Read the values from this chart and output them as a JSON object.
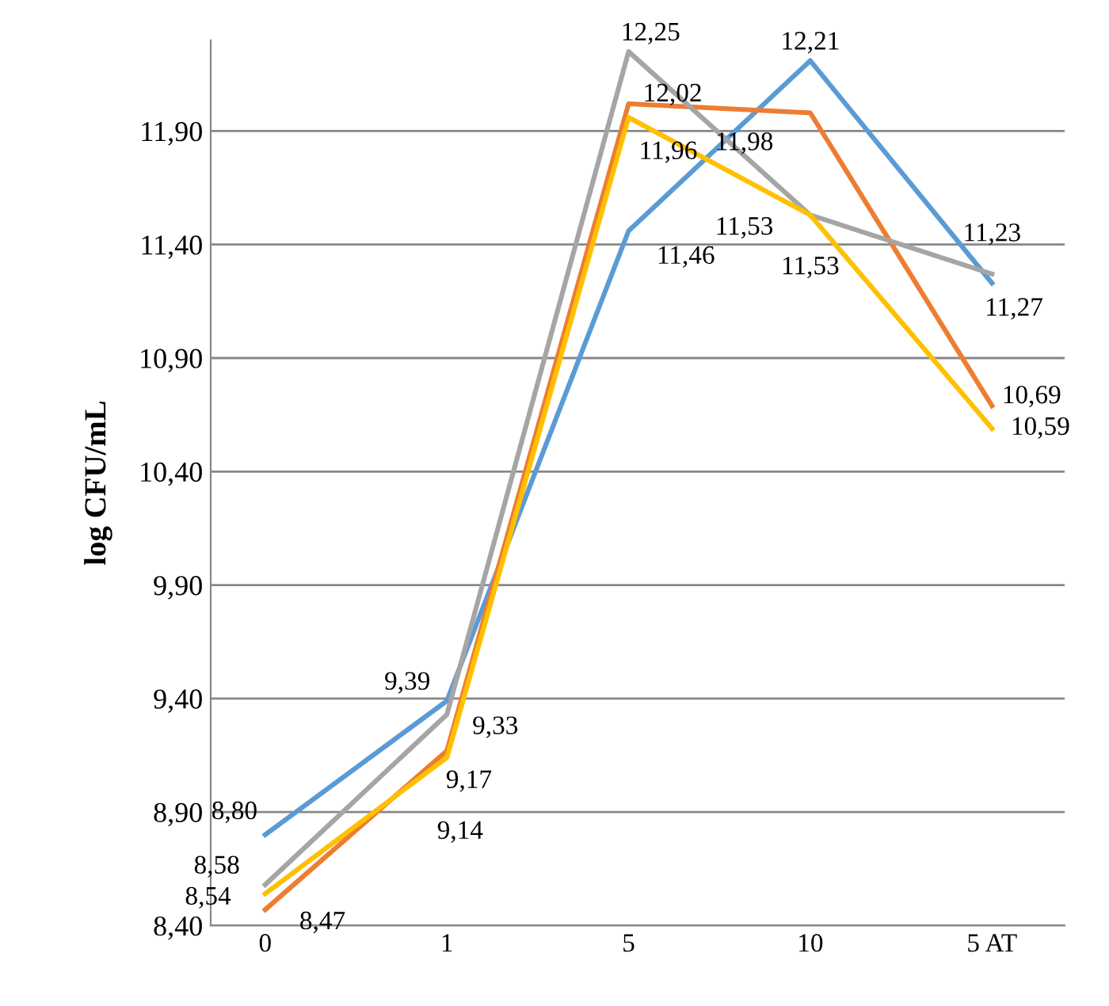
{
  "chart_data": {
    "type": "line",
    "ylabel": "log CFU/mL",
    "categories": [
      "0",
      "1",
      "5",
      "10",
      "5 AT"
    ],
    "series": [
      {
        "color": "#5b9bd5",
        "values": [
          8.8,
          9.39,
          11.46,
          12.21,
          11.23
        ],
        "value_labels": [
          "8,80",
          "9,39",
          "11,46",
          "12,21",
          "11,23"
        ]
      },
      {
        "color": "#ed7d31",
        "values": [
          8.47,
          9.17,
          12.02,
          11.98,
          10.69
        ],
        "value_labels": [
          "8,47",
          "9,17",
          "12,02",
          "11,98",
          "10,69"
        ]
      },
      {
        "color": "#a5a5a5",
        "values": [
          8.58,
          9.33,
          12.25,
          11.53,
          11.27
        ],
        "value_labels": [
          "8,58",
          "9,33",
          "12,25",
          "11,53",
          "11,27"
        ]
      },
      {
        "color": "#ffc000",
        "values": [
          8.54,
          9.14,
          11.96,
          11.53,
          10.59
        ],
        "value_labels": [
          "8,54",
          "9,14",
          "11,96",
          "11,53",
          "10,59"
        ]
      }
    ],
    "ylim": [
      8.4,
      12.3
    ],
    "yticks": [
      {
        "value": 8.4,
        "label": "8,40"
      },
      {
        "value": 8.9,
        "label": "8,90"
      },
      {
        "value": 9.4,
        "label": "9,40"
      },
      {
        "value": 9.9,
        "label": "9,90"
      },
      {
        "value": 10.4,
        "label": "10,40"
      },
      {
        "value": 10.9,
        "label": "10,90"
      },
      {
        "value": 11.4,
        "label": "11,40"
      },
      {
        "value": 11.9,
        "label": "11,90"
      }
    ],
    "grid": "y",
    "marker": "none",
    "line_style": "solid",
    "legend": false
  }
}
